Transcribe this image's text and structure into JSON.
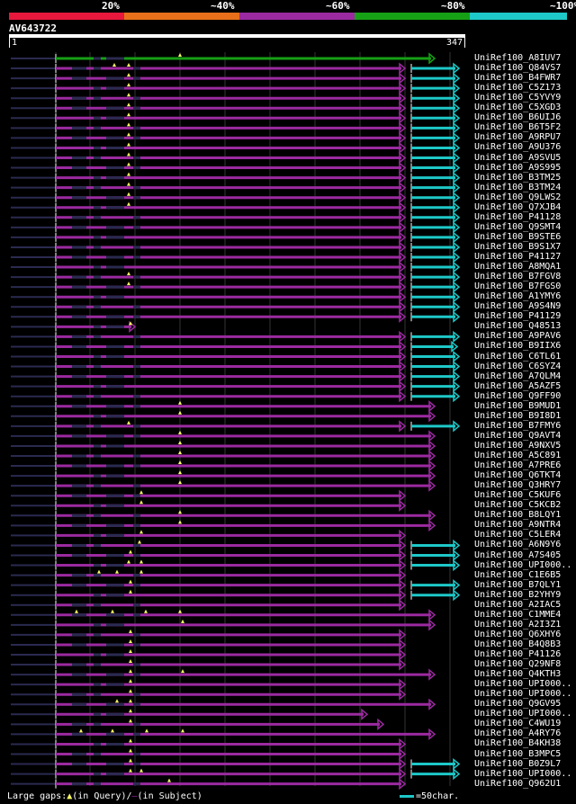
{
  "legend": {
    "segments": [
      {
        "label": "20%",
        "color": "#e8173c"
      },
      {
        "label": "~40%",
        "color": "#e8701a"
      },
      {
        "label": "~60%",
        "color": "#9b2aa0"
      },
      {
        "label": "~80%",
        "color": "#16a015"
      },
      {
        "label": "~100%",
        "color": "#1ec8c8"
      }
    ]
  },
  "query": {
    "id": "AV643722",
    "start": "1",
    "end": "347"
  },
  "colors": {
    "purple": "#9b2aa0",
    "green": "#16a015",
    "cyan": "#1ec8c8",
    "gap": "#2a2a50",
    "marker": "#ffff66",
    "grid": "#333333"
  },
  "hits": [
    {
      "name": "UniRef100_A8IUV7",
      "end": 483,
      "color": "green",
      "tail": 0,
      "m": [
        200
      ]
    },
    {
      "name": "UniRef100_Q84VS7",
      "end": 450,
      "color": "purple",
      "tail": 510,
      "m": [
        127,
        143
      ]
    },
    {
      "name": "UniRef100_B4FWR7",
      "end": 450,
      "color": "purple",
      "tail": 510,
      "m": [
        143
      ]
    },
    {
      "name": "UniRef100_C5Z173",
      "end": 450,
      "color": "purple",
      "tail": 510,
      "m": [
        143
      ]
    },
    {
      "name": "UniRef100_C5YVY9",
      "end": 450,
      "color": "purple",
      "tail": 510,
      "m": [
        143
      ]
    },
    {
      "name": "UniRef100_C5XGD3",
      "end": 450,
      "color": "purple",
      "tail": 510,
      "m": [
        143
      ]
    },
    {
      "name": "UniRef100_B6UIJ6",
      "end": 450,
      "color": "purple",
      "tail": 510,
      "m": [
        143
      ]
    },
    {
      "name": "UniRef100_B6T5F2",
      "end": 450,
      "color": "purple",
      "tail": 510,
      "m": [
        143
      ]
    },
    {
      "name": "UniRef100_A9RPU7",
      "end": 450,
      "color": "purple",
      "tail": 510,
      "m": [
        143
      ]
    },
    {
      "name": "UniRef100_A9U376",
      "end": 450,
      "color": "purple",
      "tail": 510,
      "m": [
        143
      ]
    },
    {
      "name": "UniRef100_A9SVU5",
      "end": 450,
      "color": "purple",
      "tail": 510,
      "m": [
        143
      ]
    },
    {
      "name": "UniRef100_A9S995",
      "end": 450,
      "color": "purple",
      "tail": 510,
      "m": [
        143
      ]
    },
    {
      "name": "UniRef100_B3TM25",
      "end": 450,
      "color": "purple",
      "tail": 510,
      "m": [
        143
      ]
    },
    {
      "name": "UniRef100_B3TM24",
      "end": 450,
      "color": "purple",
      "tail": 510,
      "m": [
        143
      ]
    },
    {
      "name": "UniRef100_Q9LWS2",
      "end": 450,
      "color": "purple",
      "tail": 510,
      "m": [
        143
      ]
    },
    {
      "name": "UniRef100_Q7XJB4",
      "end": 450,
      "color": "purple",
      "tail": 510,
      "m": [
        143
      ]
    },
    {
      "name": "UniRef100_P41128",
      "end": 450,
      "color": "purple",
      "tail": 510,
      "m": []
    },
    {
      "name": "UniRef100_Q9SMT4",
      "end": 450,
      "color": "purple",
      "tail": 510,
      "m": []
    },
    {
      "name": "UniRef100_B9STE6",
      "end": 450,
      "color": "purple",
      "tail": 510,
      "m": []
    },
    {
      "name": "UniRef100_B9S1X7",
      "end": 450,
      "color": "purple",
      "tail": 510,
      "m": []
    },
    {
      "name": "UniRef100_P41127",
      "end": 450,
      "color": "purple",
      "tail": 510,
      "m": []
    },
    {
      "name": "UniRef100_A8MQA1",
      "end": 450,
      "color": "purple",
      "tail": 510,
      "m": []
    },
    {
      "name": "UniRef100_B7FGV8",
      "end": 450,
      "color": "purple",
      "tail": 510,
      "m": [
        143
      ]
    },
    {
      "name": "UniRef100_B7FGS0",
      "end": 450,
      "color": "purple",
      "tail": 510,
      "m": [
        143
      ]
    },
    {
      "name": "UniRef100_A1YMY6",
      "end": 450,
      "color": "purple",
      "tail": 510,
      "m": []
    },
    {
      "name": "UniRef100_A9S4N9",
      "end": 450,
      "color": "purple",
      "tail": 510,
      "m": []
    },
    {
      "name": "UniRef100_P41129",
      "end": 450,
      "color": "purple",
      "tail": 510,
      "m": []
    },
    {
      "name": "UniRef100_Q48513",
      "end": 150,
      "color": "purple",
      "tail": 0,
      "m": [
        145
      ]
    },
    {
      "name": "UniRef100_A9PAV6",
      "end": 450,
      "color": "purple",
      "tail": 510,
      "m": []
    },
    {
      "name": "UniRef100_B9IIX6",
      "end": 450,
      "color": "purple",
      "tail": 508,
      "m": []
    },
    {
      "name": "UniRef100_C6TL61",
      "end": 450,
      "color": "purple",
      "tail": 510,
      "m": []
    },
    {
      "name": "UniRef100_C6SYZ4",
      "end": 450,
      "color": "purple",
      "tail": 510,
      "m": []
    },
    {
      "name": "UniRef100_A7QLM4",
      "end": 450,
      "color": "purple",
      "tail": 510,
      "m": []
    },
    {
      "name": "UniRef100_A5AZF5",
      "end": 450,
      "color": "purple",
      "tail": 510,
      "m": []
    },
    {
      "name": "UniRef100_Q9FF90",
      "end": 450,
      "color": "purple",
      "tail": 510,
      "m": []
    },
    {
      "name": "UniRef100_B9MUD1",
      "end": 483,
      "color": "purple",
      "tail": 0,
      "m": [
        200
      ]
    },
    {
      "name": "UniRef100_B9I8D1",
      "end": 483,
      "color": "purple",
      "tail": 0,
      "m": [
        200
      ]
    },
    {
      "name": "UniRef100_B7FMY6",
      "end": 450,
      "color": "purple",
      "tail": 510,
      "m": [
        143
      ]
    },
    {
      "name": "UniRef100_Q9AVT4",
      "end": 483,
      "color": "purple",
      "tail": 0,
      "m": [
        200
      ]
    },
    {
      "name": "UniRef100_A9NXV5",
      "end": 483,
      "color": "purple",
      "tail": 0,
      "m": [
        200
      ]
    },
    {
      "name": "UniRef100_A5C891",
      "end": 483,
      "color": "purple",
      "tail": 0,
      "m": [
        200
      ]
    },
    {
      "name": "UniRef100_A7PRE6",
      "end": 483,
      "color": "purple",
      "tail": 0,
      "m": [
        200
      ]
    },
    {
      "name": "UniRef100_Q6TKT4",
      "end": 483,
      "color": "purple",
      "tail": 0,
      "m": [
        200
      ]
    },
    {
      "name": "UniRef100_Q3HRY7",
      "end": 483,
      "color": "purple",
      "tail": 0,
      "m": [
        200
      ]
    },
    {
      "name": "UniRef100_C5KUF6",
      "end": 450,
      "color": "purple",
      "tail": 0,
      "m": [
        157
      ]
    },
    {
      "name": "UniRef100_C5KCB2",
      "end": 450,
      "color": "purple",
      "tail": 0,
      "m": [
        157
      ]
    },
    {
      "name": "UniRef100_B8LQY1",
      "end": 483,
      "color": "purple",
      "tail": 0,
      "m": [
        200
      ]
    },
    {
      "name": "UniRef100_A9NTR4",
      "end": 483,
      "color": "purple",
      "tail": 0,
      "m": [
        200
      ]
    },
    {
      "name": "UniRef100_C5LER4",
      "end": 450,
      "color": "purple",
      "tail": 0,
      "m": [
        157
      ]
    },
    {
      "name": "UniRef100_A6N9Y6",
      "end": 450,
      "color": "purple",
      "tail": 510,
      "m": [
        155
      ]
    },
    {
      "name": "UniRef100_A7S405",
      "end": 450,
      "color": "purple",
      "tail": 510,
      "m": [
        145
      ]
    },
    {
      "name": "UniRef100_UPI000..",
      "end": 450,
      "color": "purple",
      "tail": 510,
      "m": [
        143,
        157
      ]
    },
    {
      "name": "UniRef100_C1E6B5",
      "end": 450,
      "color": "purple",
      "tail": 0,
      "m": [
        110,
        130,
        157
      ]
    },
    {
      "name": "UniRef100_B7QLY1",
      "end": 450,
      "color": "purple",
      "tail": 510,
      "m": [
        145
      ]
    },
    {
      "name": "UniRef100_B2YHY9",
      "end": 450,
      "color": "purple",
      "tail": 510,
      "m": [
        145
      ]
    },
    {
      "name": "UniRef100_A2IAC5",
      "end": 450,
      "color": "purple",
      "tail": 0,
      "m": []
    },
    {
      "name": "UniRef100_C1MME4",
      "end": 483,
      "color": "purple",
      "tail": 0,
      "m": [
        85,
        125,
        162,
        200
      ]
    },
    {
      "name": "UniRef100_A2I3Z1",
      "end": 483,
      "color": "purple",
      "tail": 0,
      "m": [
        203
      ]
    },
    {
      "name": "UniRef100_Q6XHY6",
      "end": 450,
      "color": "purple",
      "tail": 0,
      "m": [
        145
      ]
    },
    {
      "name": "UniRef100_B4Q8B3",
      "end": 450,
      "color": "purple",
      "tail": 0,
      "m": [
        145
      ]
    },
    {
      "name": "UniRef100_P41126",
      "end": 450,
      "color": "purple",
      "tail": 0,
      "m": [
        145
      ]
    },
    {
      "name": "UniRef100_Q29NF8",
      "end": 450,
      "color": "purple",
      "tail": 0,
      "m": [
        145
      ]
    },
    {
      "name": "UniRef100_Q4KTH3",
      "end": 483,
      "color": "purple",
      "tail": 0,
      "m": [
        145,
        203
      ]
    },
    {
      "name": "UniRef100_UPI000..",
      "end": 450,
      "color": "purple",
      "tail": 0,
      "m": [
        145
      ]
    },
    {
      "name": "UniRef100_UPI000..",
      "end": 450,
      "color": "purple",
      "tail": 0,
      "m": [
        145
      ]
    },
    {
      "name": "UniRef100_Q9GV95",
      "end": 483,
      "color": "purple",
      "tail": 0,
      "m": [
        130,
        145
      ]
    },
    {
      "name": "UniRef100_UPI000..",
      "end": 408,
      "color": "purple",
      "tail": 0,
      "m": [
        145
      ]
    },
    {
      "name": "UniRef100_C4WU19",
      "end": 426,
      "color": "purple",
      "tail": 0,
      "m": [
        145
      ]
    },
    {
      "name": "UniRef100_A4RY76",
      "end": 483,
      "color": "purple",
      "tail": 0,
      "m": [
        90,
        125,
        163,
        203
      ]
    },
    {
      "name": "UniRef100_B4KH38",
      "end": 450,
      "color": "purple",
      "tail": 0,
      "m": [
        145
      ]
    },
    {
      "name": "UniRef100_B3MPC5",
      "end": 450,
      "color": "purple",
      "tail": 0,
      "m": [
        145
      ]
    },
    {
      "name": "UniRef100_B0Z9L7",
      "end": 450,
      "color": "purple",
      "tail": 510,
      "m": [
        145
      ]
    },
    {
      "name": "UniRef100_UPI000..",
      "end": 450,
      "color": "purple",
      "tail": 510,
      "m": [
        145,
        157
      ]
    },
    {
      "name": "UniRef100_Q962U1",
      "end": 450,
      "color": "purple",
      "tail": 0,
      "m": [
        188
      ]
    }
  ],
  "footer": {
    "gaps_prefix": "Large gaps:",
    "gaps_query": "(in Query)/",
    "gaps_subject": "(in Subject)",
    "scale_label": "=50char."
  }
}
